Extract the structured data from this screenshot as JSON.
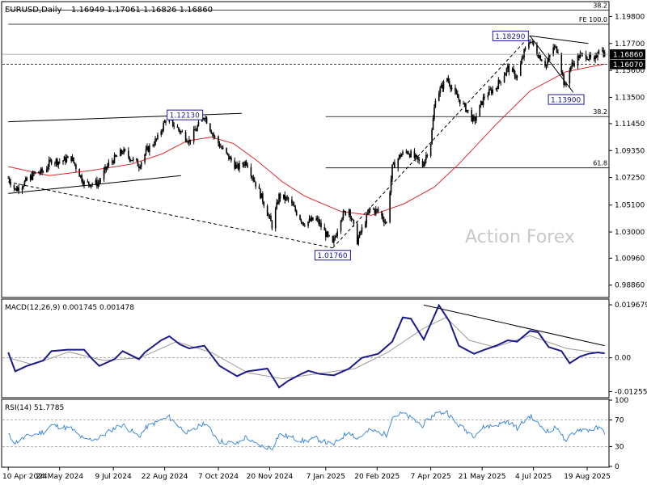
{
  "chart_data": {
    "type": "candlestick",
    "header": {
      "symbol": "EURUSD,Daily",
      "ohlc": "1.16949 1.17061 1.16826 1.16860"
    },
    "watermark": "Action Forex",
    "colors": {
      "candle": "#000000",
      "ma": "#e0262b",
      "macd": "#1a1a8c",
      "signal": "#9a9a9a",
      "rsi": "#2f7fd6",
      "trend": "#000000",
      "price_tag_bg": "#000000"
    },
    "price_axis": {
      "ylim": [
        0.9796,
        1.209
      ],
      "ticks": [
        {
          "v": 1.198,
          "label": "1.19800"
        },
        {
          "v": 1.177,
          "label": "1.17700"
        },
        {
          "v": 1.156,
          "label": "1.15600"
        },
        {
          "v": 1.135,
          "label": "1.13500"
        },
        {
          "v": 1.1145,
          "label": "1.11450"
        },
        {
          "v": 1.0935,
          "label": "1.09350"
        },
        {
          "v": 1.0725,
          "label": "1.07250"
        },
        {
          "v": 1.051,
          "label": "1.05100"
        },
        {
          "v": 1.03,
          "label": "1.03000"
        },
        {
          "v": 1.0096,
          "label": "1.00960"
        },
        {
          "v": 0.9886,
          "label": "0.98860"
        }
      ],
      "current_price": {
        "v": 1.1686,
        "label": "1.16860"
      },
      "marked_level": {
        "v": 1.1607,
        "label": "1.16070"
      }
    },
    "fib_levels": [
      {
        "v": 1.203,
        "label": "38.2",
        "x_start": "2024-04-10"
      },
      {
        "v": 1.192,
        "label": "FE 100.0",
        "x_start": "2024-04-10"
      },
      {
        "v": 1.12,
        "label": "38.2",
        "x_start": "2025-01-07"
      },
      {
        "v": 1.08,
        "label": "61.8",
        "x_start": "2025-01-07"
      }
    ],
    "annotations": [
      {
        "label": "1.18290",
        "date": "2025-07-01",
        "v": 1.1829,
        "pos": "left"
      },
      {
        "label": "1.12130",
        "date": "2024-09-25",
        "v": 1.1213,
        "pos": "left"
      },
      {
        "label": "1.13900",
        "date": "2025-08-01",
        "v": 1.139,
        "pos": "below"
      },
      {
        "label": "1.01760",
        "date": "2025-01-13",
        "v": 1.0176,
        "pos": "below"
      }
    ],
    "trendlines": [
      {
        "from": {
          "date": "2024-04-10",
          "v": 1.116
        },
        "to": {
          "date": "2024-10-27",
          "v": 1.1225
        },
        "style": "solid"
      },
      {
        "from": {
          "date": "2024-04-10",
          "v": 1.06
        },
        "to": {
          "date": "2024-09-05",
          "v": 1.074
        },
        "style": "solid"
      },
      {
        "from": {
          "date": "2024-04-10",
          "v": 1.069
        },
        "to": {
          "date": "2025-01-13",
          "v": 1.0176
        },
        "style": "dashed"
      },
      {
        "from": {
          "date": "2025-01-13",
          "v": 1.0176
        },
        "to": {
          "date": "2025-07-01",
          "v": 1.1829
        },
        "style": "dashed"
      },
      {
        "from": {
          "date": "2025-07-01",
          "v": 1.1829
        },
        "to": {
          "date": "2025-08-20",
          "v": 1.177
        },
        "style": "solid"
      },
      {
        "from": {
          "date": "2025-07-01",
          "v": 1.1829
        },
        "to": {
          "date": "2025-08-07",
          "v": 1.139
        },
        "style": "solid"
      }
    ],
    "prices": [
      [
        "2024-04-10",
        1.072
      ],
      [
        "2024-04-16",
        1.063
      ],
      [
        "2024-04-26",
        1.07
      ],
      [
        "2024-05-03",
        1.076
      ],
      [
        "2024-05-10",
        1.077
      ],
      [
        "2024-05-17",
        1.086
      ],
      [
        "2024-05-24",
        1.085
      ],
      [
        "2024-06-03",
        1.088
      ],
      [
        "2024-06-14",
        1.068
      ],
      [
        "2024-06-26",
        1.068
      ],
      [
        "2024-07-05",
        1.083
      ],
      [
        "2024-07-17",
        1.093
      ],
      [
        "2024-07-31",
        1.082
      ],
      [
        "2024-08-07",
        1.094
      ],
      [
        "2024-08-16",
        1.103
      ],
      [
        "2024-08-23",
        1.118
      ],
      [
        "2024-08-27",
        1.116
      ],
      [
        "2024-09-05",
        1.108
      ],
      [
        "2024-09-12",
        1.101
      ],
      [
        "2024-09-25",
        1.121
      ],
      [
        "2024-10-03",
        1.105
      ],
      [
        "2024-10-10",
        1.095
      ],
      [
        "2024-10-23",
        1.08
      ],
      [
        "2024-10-31",
        1.085
      ],
      [
        "2024-11-06",
        1.072
      ],
      [
        "2024-11-14",
        1.055
      ],
      [
        "2024-11-22",
        1.035
      ],
      [
        "2024-11-28",
        1.058
      ],
      [
        "2024-12-06",
        1.055
      ],
      [
        "2024-12-19",
        1.037
      ],
      [
        "2024-12-30",
        1.04
      ],
      [
        "2025-01-13",
        1.02
      ],
      [
        "2025-01-20",
        1.042
      ],
      [
        "2025-01-27",
        1.048
      ],
      [
        "2025-02-03",
        1.023
      ],
      [
        "2025-02-14",
        1.048
      ],
      [
        "2025-02-21",
        1.046
      ],
      [
        "2025-02-28",
        1.037
      ],
      [
        "2025-03-05",
        1.08
      ],
      [
        "2025-03-12",
        1.09
      ],
      [
        "2025-03-18",
        1.093
      ],
      [
        "2025-03-31",
        1.082
      ],
      [
        "2025-04-07",
        1.1
      ],
      [
        "2025-04-11",
        1.135
      ],
      [
        "2025-04-21",
        1.15
      ],
      [
        "2025-04-28",
        1.137
      ],
      [
        "2025-05-09",
        1.124
      ],
      [
        "2025-05-14",
        1.116
      ],
      [
        "2025-05-23",
        1.136
      ],
      [
        "2025-06-02",
        1.143
      ],
      [
        "2025-06-12",
        1.158
      ],
      [
        "2025-06-20",
        1.151
      ],
      [
        "2025-06-26",
        1.17
      ],
      [
        "2025-07-01",
        1.18
      ],
      [
        "2025-07-07",
        1.17
      ],
      [
        "2025-07-15",
        1.16
      ],
      [
        "2025-07-21",
        1.174
      ],
      [
        "2025-07-25",
        1.172
      ],
      [
        "2025-07-31",
        1.142
      ],
      [
        "2025-08-04",
        1.158
      ],
      [
        "2025-08-12",
        1.167
      ],
      [
        "2025-08-18",
        1.168
      ],
      [
        "2025-08-25",
        1.162
      ],
      [
        "2025-08-29",
        1.174
      ],
      [
        "2025-09-03",
        1.1686
      ]
    ],
    "moving_average": [
      [
        "2024-04-10",
        1.081
      ],
      [
        "2024-05-15",
        1.074
      ],
      [
        "2024-06-20",
        1.078
      ],
      [
        "2024-07-25",
        1.083
      ],
      [
        "2024-08-20",
        1.091
      ],
      [
        "2024-09-10",
        1.101
      ],
      [
        "2024-10-01",
        1.104
      ],
      [
        "2024-10-20",
        1.099
      ],
      [
        "2024-11-10",
        1.085
      ],
      [
        "2024-12-01",
        1.069
      ],
      [
        "2024-12-20",
        1.058
      ],
      [
        "2025-01-20",
        1.046
      ],
      [
        "2025-02-15",
        1.043
      ],
      [
        "2025-03-15",
        1.052
      ],
      [
        "2025-04-10",
        1.065
      ],
      [
        "2025-05-01",
        1.083
      ],
      [
        "2025-06-01",
        1.113
      ],
      [
        "2025-07-01",
        1.14
      ],
      [
        "2025-08-01",
        1.155
      ],
      [
        "2025-09-03",
        1.161
      ]
    ],
    "macd": {
      "label": "MACD(12,26,9) 0.001745 0.001478",
      "ylim": [
        -0.0145,
        0.0215
      ],
      "ticks": [
        {
          "v": 0.019679,
          "label": "0.019679"
        },
        {
          "v": 0.0,
          "label": "0.00"
        },
        {
          "v": -0.012552,
          "label": "-0.012552"
        }
      ],
      "trendline": {
        "from": {
          "date": "2025-04-01",
          "v": 0.0196
        },
        "to": {
          "date": "2025-09-03",
          "v": 0.0045
        }
      },
      "main": [
        [
          "2024-04-10",
          0.002
        ],
        [
          "2024-04-16",
          -0.005
        ],
        [
          "2024-04-26",
          -0.003
        ],
        [
          "2024-05-10",
          -0.001
        ],
        [
          "2024-05-17",
          0.0025
        ],
        [
          "2024-05-31",
          0.003
        ],
        [
          "2024-06-14",
          0.003
        ],
        [
          "2024-06-21",
          -0.0005
        ],
        [
          "2024-06-27",
          -0.003
        ],
        [
          "2024-07-10",
          -0.0005
        ],
        [
          "2024-07-17",
          0.0025
        ],
        [
          "2024-07-31",
          -0.0005
        ],
        [
          "2024-08-05",
          0.002
        ],
        [
          "2024-08-19",
          0.0065
        ],
        [
          "2024-08-26",
          0.008
        ],
        [
          "2024-09-04",
          0.005
        ],
        [
          "2024-09-12",
          0.0035
        ],
        [
          "2024-09-25",
          0.0045
        ],
        [
          "2024-10-08",
          -0.003
        ],
        [
          "2024-10-23",
          -0.0068
        ],
        [
          "2024-11-01",
          -0.005
        ],
        [
          "2024-11-18",
          -0.004
        ],
        [
          "2024-11-28",
          -0.011
        ],
        [
          "2024-12-06",
          -0.0085
        ],
        [
          "2024-12-17",
          -0.006
        ],
        [
          "2024-12-23",
          -0.0048
        ],
        [
          "2025-01-02",
          -0.006
        ],
        [
          "2025-01-14",
          -0.0065
        ],
        [
          "2025-01-27",
          -0.004
        ],
        [
          "2025-02-07",
          0.0
        ],
        [
          "2025-02-21",
          0.0015
        ],
        [
          "2025-03-05",
          0.006
        ],
        [
          "2025-03-14",
          0.015
        ],
        [
          "2025-03-21",
          0.0145
        ],
        [
          "2025-04-01",
          0.0068
        ],
        [
          "2025-04-14",
          0.0195
        ],
        [
          "2025-04-23",
          0.0135
        ],
        [
          "2025-05-01",
          0.0045
        ],
        [
          "2025-05-14",
          0.0015
        ],
        [
          "2025-05-23",
          0.003
        ],
        [
          "2025-06-02",
          0.0045
        ],
        [
          "2025-06-12",
          0.0065
        ],
        [
          "2025-06-20",
          0.006
        ],
        [
          "2025-07-01",
          0.01
        ],
        [
          "2025-07-08",
          0.0095
        ],
        [
          "2025-07-17",
          0.004
        ],
        [
          "2025-07-28",
          0.0025
        ],
        [
          "2025-08-04",
          -0.002
        ],
        [
          "2025-08-13",
          0.0005
        ],
        [
          "2025-08-20",
          0.0015
        ],
        [
          "2025-08-28",
          0.002
        ],
        [
          "2025-09-03",
          0.0017
        ]
      ],
      "signal": [
        [
          "2024-04-10",
          0.0
        ],
        [
          "2024-05-01",
          -0.0025
        ],
        [
          "2024-06-01",
          0.0022
        ],
        [
          "2024-07-01",
          -0.001
        ],
        [
          "2024-08-01",
          0.0
        ],
        [
          "2024-09-01",
          0.006
        ],
        [
          "2024-10-01",
          0.002
        ],
        [
          "2024-11-01",
          -0.0055
        ],
        [
          "2024-12-01",
          -0.0078
        ],
        [
          "2025-01-01",
          -0.0058
        ],
        [
          "2025-02-01",
          -0.004
        ],
        [
          "2025-03-01",
          0.002
        ],
        [
          "2025-04-01",
          0.011
        ],
        [
          "2025-04-20",
          0.015
        ],
        [
          "2025-05-10",
          0.0065
        ],
        [
          "2025-06-01",
          0.004
        ],
        [
          "2025-07-01",
          0.0082
        ],
        [
          "2025-08-01",
          0.0035
        ],
        [
          "2025-09-03",
          0.0015
        ]
      ]
    },
    "rsi": {
      "label": "RSI(14) 51.7785",
      "ylim": [
        0,
        100
      ],
      "ticks": [
        {
          "v": 100,
          "label": "100"
        },
        {
          "v": 70,
          "label": "70"
        },
        {
          "v": 30,
          "label": "30"
        },
        {
          "v": 0,
          "label": "0"
        }
      ],
      "values": [
        [
          "2024-04-10",
          48
        ],
        [
          "2024-04-16",
          36
        ],
        [
          "2024-04-26",
          45
        ],
        [
          "2024-05-10",
          52
        ],
        [
          "2024-05-17",
          62
        ],
        [
          "2024-06-03",
          57
        ],
        [
          "2024-06-14",
          40
        ],
        [
          "2024-06-26",
          42
        ],
        [
          "2024-07-10",
          58
        ],
        [
          "2024-07-17",
          63
        ],
        [
          "2024-07-31",
          45
        ],
        [
          "2024-08-07",
          60
        ],
        [
          "2024-08-19",
          70
        ],
        [
          "2024-08-26",
          74
        ],
        [
          "2024-09-05",
          58
        ],
        [
          "2024-09-12",
          50
        ],
        [
          "2024-09-25",
          66
        ],
        [
          "2024-10-08",
          38
        ],
        [
          "2024-10-23",
          34
        ],
        [
          "2024-10-31",
          45
        ],
        [
          "2024-11-06",
          35
        ],
        [
          "2024-11-14",
          30
        ],
        [
          "2024-11-22",
          28
        ],
        [
          "2024-11-28",
          48
        ],
        [
          "2024-12-06",
          45
        ],
        [
          "2024-12-19",
          38
        ],
        [
          "2024-12-30",
          42
        ],
        [
          "2025-01-13",
          32
        ],
        [
          "2025-01-27",
          53
        ],
        [
          "2025-02-03",
          42
        ],
        [
          "2025-02-14",
          55
        ],
        [
          "2025-02-28",
          48
        ],
        [
          "2025-03-05",
          75
        ],
        [
          "2025-03-14",
          80
        ],
        [
          "2025-03-31",
          62
        ],
        [
          "2025-04-11",
          80
        ],
        [
          "2025-04-21",
          82
        ],
        [
          "2025-04-28",
          66
        ],
        [
          "2025-05-09",
          52
        ],
        [
          "2025-05-14",
          47
        ],
        [
          "2025-05-23",
          60
        ],
        [
          "2025-06-02",
          62
        ],
        [
          "2025-06-12",
          68
        ],
        [
          "2025-06-20",
          58
        ],
        [
          "2025-07-01",
          76
        ],
        [
          "2025-07-08",
          64
        ],
        [
          "2025-07-17",
          52
        ],
        [
          "2025-07-25",
          60
        ],
        [
          "2025-08-01",
          34
        ],
        [
          "2025-08-05",
          48
        ],
        [
          "2025-08-12",
          56
        ],
        [
          "2025-08-20",
          55
        ],
        [
          "2025-08-28",
          58
        ],
        [
          "2025-09-03",
          52
        ]
      ]
    },
    "x_axis": {
      "start": "2024-04-05",
      "end": "2025-09-06",
      "ticks": [
        {
          "date": "2024-04-10",
          "label": "10 Apr 2024"
        },
        {
          "date": "2024-05-24",
          "label": "24 May 2024"
        },
        {
          "date": "2024-07-09",
          "label": "9 Jul 2024"
        },
        {
          "date": "2024-08-22",
          "label": "22 Aug 2024"
        },
        {
          "date": "2024-10-07",
          "label": "7 Oct 2024"
        },
        {
          "date": "2024-11-20",
          "label": "20 Nov 2024"
        },
        {
          "date": "2025-01-07",
          "label": "7 Jan 2025"
        },
        {
          "date": "2025-02-20",
          "label": "20 Feb 2025"
        },
        {
          "date": "2025-04-07",
          "label": "7 Apr 2025"
        },
        {
          "date": "2025-05-21",
          "label": "21 May 2025"
        },
        {
          "date": "2025-07-04",
          "label": "4 Jul 2025"
        },
        {
          "date": "2025-08-19",
          "label": "19 Aug 2025"
        }
      ]
    }
  }
}
